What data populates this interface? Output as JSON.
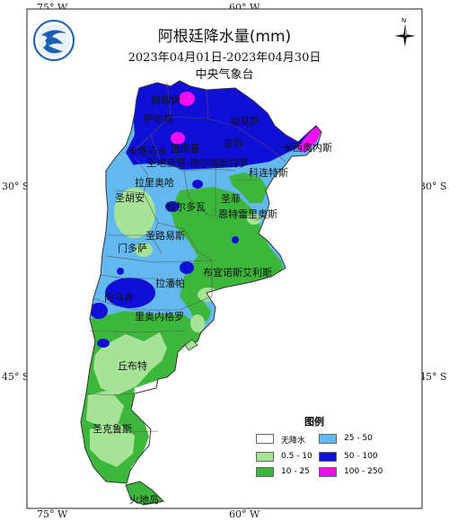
{
  "title": "阿根廷降水量(mm)",
  "period": "2023年04月01日-2023年04月30日",
  "agency": "中央气象台",
  "compass_letter": "N",
  "graticule": {
    "top": [
      "75° W",
      "60° W"
    ],
    "bottom": [
      "75° W",
      "60° W"
    ],
    "left": [
      "30° S",
      "45° S"
    ],
    "right": [
      "30° S",
      "45° S"
    ]
  },
  "colors": {
    "no_rain": "#ffffff",
    "c_0_5_10": "#a6e397",
    "c_10_25": "#3cb73c",
    "c_25_50": "#63b8f0",
    "c_50_100": "#0f0fd8",
    "c_100_250": "#f40ff0",
    "ocean": "#ffffff",
    "border": "#444444"
  },
  "legend": {
    "title": "图例",
    "items": [
      {
        "label": "无降水",
        "color": "#ffffff"
      },
      {
        "label": "0.5 - 10",
        "color": "#a6e397"
      },
      {
        "label": "10 - 25",
        "color": "#3cb73c"
      },
      {
        "label": "25 - 50",
        "color": "#63b8f0"
      },
      {
        "label": "50 - 100",
        "color": "#0f0fd8"
      },
      {
        "label": "100 - 250",
        "color": "#f40ff0"
      }
    ]
  },
  "places": [
    "胡胡伊",
    "萨尔塔",
    "福莫萨",
    "查科",
    "卡塔马卡",
    "图库曼",
    "米西奥内斯",
    "圣地亚哥-德尔埃斯特罗",
    "科连特斯",
    "拉里奥哈",
    "圣菲",
    "圣胡安",
    "科尔多瓦",
    "恩特雷里奥斯",
    "圣路易斯",
    "门多萨",
    "布宜诺斯艾利斯",
    "拉潘帕",
    "内乌肯",
    "里奥内格罗",
    "丘布特",
    "圣克鲁斯",
    "火地岛"
  ]
}
